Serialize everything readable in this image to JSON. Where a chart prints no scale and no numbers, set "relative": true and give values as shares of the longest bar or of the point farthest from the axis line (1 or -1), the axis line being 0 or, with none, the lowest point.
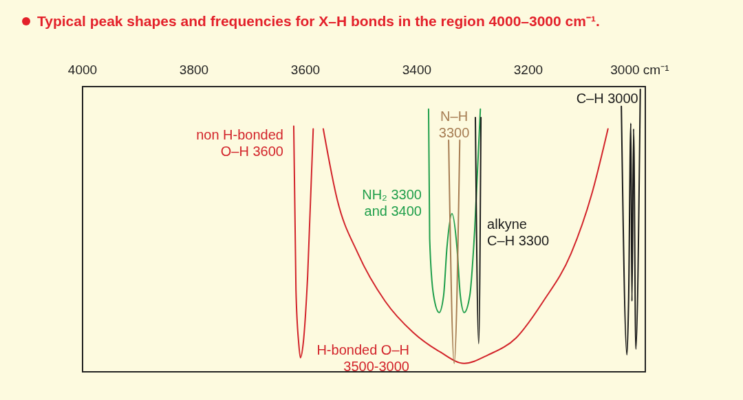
{
  "chart_data": {
    "type": "line",
    "title": "Typical peak shapes and frequencies for X–H bonds in the region 4000–3000 cm⁻¹.",
    "relative": true,
    "xlim": [
      4000,
      2990
    ],
    "xticks": [
      4000,
      3800,
      3600,
      3400,
      3200,
      {
        "value": 3000,
        "label": "3000 cm⁻¹"
      }
    ],
    "series": [
      {
        "name": "non H-bonded O–H 3600",
        "color": "#d2232a",
        "x": [
          3621,
          3617,
          3612,
          3609,
          3604,
          3596,
          3586
        ],
        "values": [
          0.87,
          0.29,
          0.1,
          0.05,
          0.1,
          0.34,
          0.86
        ]
      },
      {
        "name": "H-bonded O–H 3500-3000",
        "color": "#d2232a",
        "x": [
          3568,
          3543,
          3506,
          3457,
          3407,
          3358,
          3315,
          3272,
          3222,
          3173,
          3123,
          3086,
          3057
        ],
        "values": [
          0.86,
          0.61,
          0.42,
          0.25,
          0.14,
          0.07,
          0.03,
          0.06,
          0.12,
          0.25,
          0.42,
          0.63,
          0.86
        ]
      },
      {
        "name": "NH₂ 3300 and 3400",
        "color": "#1e9e4a",
        "x": [
          3379,
          3377,
          3370,
          3360,
          3352,
          3346,
          3337,
          3328,
          3322,
          3315,
          3305,
          3296,
          3286
        ],
        "values": [
          0.93,
          0.47,
          0.27,
          0.21,
          0.27,
          0.44,
          0.56,
          0.44,
          0.27,
          0.21,
          0.27,
          0.51,
          0.93
        ]
      },
      {
        "name": "N–H 3300",
        "color": "#a67c52",
        "x": [
          3343,
          3333,
          3323
        ],
        "values": [
          0.82,
          0.03,
          0.82
        ]
      },
      {
        "name": "alkyne C–H 3300",
        "color": "#1a1a1a",
        "x": [
          3295,
          3289,
          3285
        ],
        "values": [
          0.9,
          0.1,
          0.9
        ]
      },
      {
        "name": "C–H 3000",
        "color": "#1a1a1a",
        "x": [
          3033,
          3023,
          3020,
          3016,
          3014,
          3011,
          3007,
          2999
        ],
        "values": [
          0.94,
          0.06,
          0.25,
          0.88,
          0.25,
          0.86,
          0.08,
          1
        ]
      }
    ]
  }
}
